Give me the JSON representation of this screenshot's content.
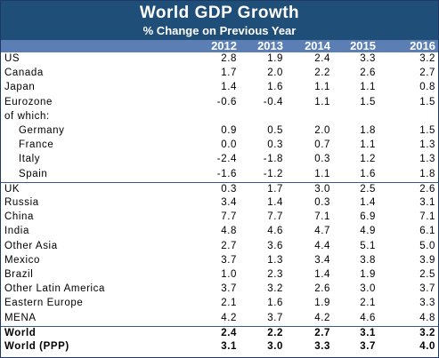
{
  "chart_data": {
    "type": "table",
    "title": "World GDP Growth",
    "subtitle": "% Change on Previous Year",
    "columns": [
      "2012",
      "2013",
      "2014",
      "2015",
      "2016"
    ],
    "rows": [
      {
        "label": "US",
        "values": [
          "2.8",
          "1.9",
          "2.4",
          "3.3",
          "3.2"
        ]
      },
      {
        "label": "Canada",
        "values": [
          "1.7",
          "2.0",
          "2.2",
          "2.6",
          "2.7"
        ]
      },
      {
        "label": "Japan",
        "values": [
          "1.4",
          "1.6",
          "1.1",
          "1.1",
          "0.8"
        ]
      },
      {
        "label": "Eurozone",
        "values": [
          "-0.6",
          "-0.4",
          "1.1",
          "1.5",
          "1.5"
        ]
      },
      {
        "label": "of which:",
        "values": [
          "",
          "",
          "",
          "",
          ""
        ]
      },
      {
        "label": "Germany",
        "values": [
          "0.9",
          "0.5",
          "2.0",
          "1.8",
          "1.5"
        ],
        "indent": true
      },
      {
        "label": "France",
        "values": [
          "0.0",
          "0.3",
          "0.7",
          "1.1",
          "1.3"
        ],
        "indent": true
      },
      {
        "label": "Italy",
        "values": [
          "-2.4",
          "-1.8",
          "0.3",
          "1.2",
          "1.3"
        ],
        "indent": true
      },
      {
        "label": "Spain",
        "values": [
          "-1.6",
          "-1.2",
          "1.1",
          "1.6",
          "1.8"
        ],
        "indent": true
      },
      {
        "label": "UK",
        "values": [
          "0.3",
          "1.7",
          "3.0",
          "2.5",
          "2.6"
        ]
      },
      {
        "label": "Russia",
        "values": [
          "3.4",
          "1.4",
          "0.3",
          "1.4",
          "3.1"
        ]
      },
      {
        "label": "China",
        "values": [
          "7.7",
          "7.7",
          "7.1",
          "6.9",
          "7.1"
        ]
      },
      {
        "label": "India",
        "values": [
          "4.8",
          "4.6",
          "4.7",
          "4.9",
          "6.1"
        ]
      },
      {
        "label": "Other Asia",
        "values": [
          "2.7",
          "3.6",
          "4.4",
          "5.1",
          "5.0"
        ]
      },
      {
        "label": "Mexico",
        "values": [
          "3.7",
          "1.3",
          "3.4",
          "3.8",
          "3.9"
        ]
      },
      {
        "label": "Brazil",
        "values": [
          "1.0",
          "2.3",
          "1.4",
          "1.9",
          "2.5"
        ]
      },
      {
        "label": "Other Latin America",
        "values": [
          "3.7",
          "3.2",
          "2.6",
          "3.0",
          "3.7"
        ]
      },
      {
        "label": "Eastern Europe",
        "values": [
          "2.1",
          "1.6",
          "1.9",
          "2.1",
          "3.3"
        ]
      },
      {
        "label": "MENA",
        "values": [
          "4.2",
          "3.7",
          "4.2",
          "4.6",
          "4.8"
        ]
      },
      {
        "label": "World",
        "values": [
          "2.4",
          "2.2",
          "2.7",
          "3.1",
          "3.2"
        ],
        "bold": true
      },
      {
        "label": "World (PPP)",
        "values": [
          "3.1",
          "3.0",
          "3.3",
          "3.7",
          "4.0"
        ],
        "bold": true
      }
    ]
  },
  "colors": {
    "title_bg": "#1f4e79",
    "header_bg": "#5b7fb5",
    "header_text": "#ffffff",
    "separator": "#3a5a8a"
  }
}
